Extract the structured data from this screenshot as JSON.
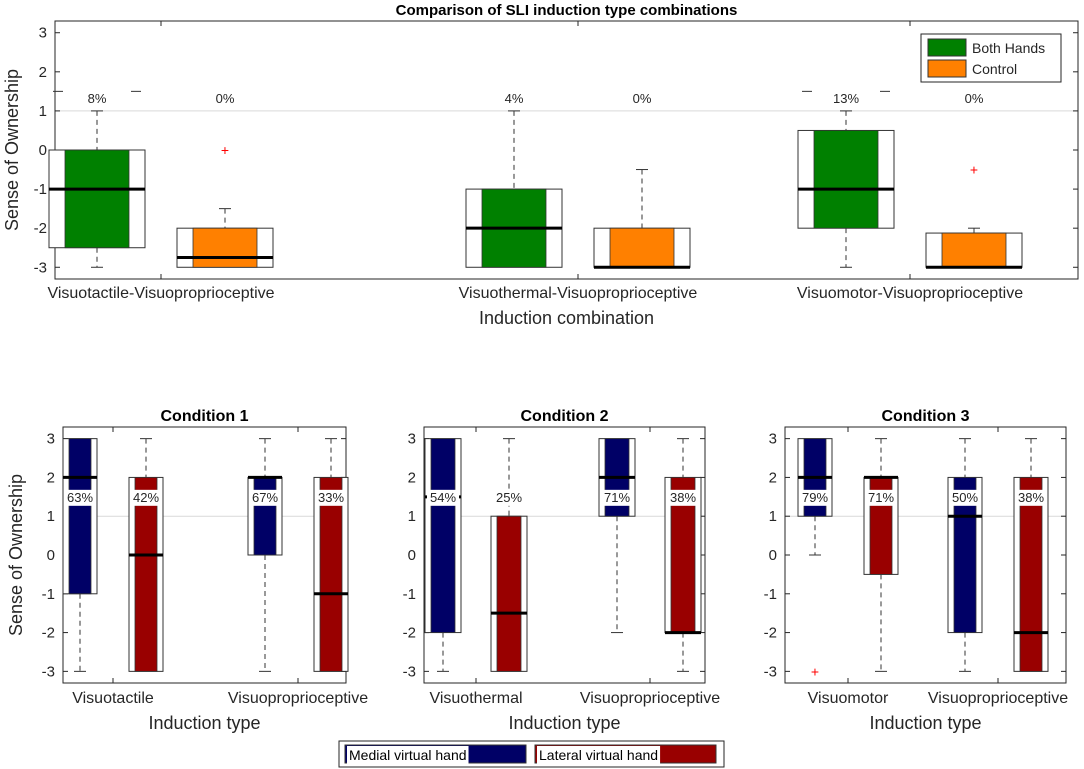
{
  "colors": {
    "both_hands": "#008000",
    "control": "#ff8000",
    "medial": "#000066",
    "lateral": "#990000",
    "outlier": "#ff0000",
    "gridline": "#d9d9d9"
  },
  "chart_data": [
    {
      "type": "boxplot",
      "title": "Comparison of SLI induction type combinations",
      "xlabel": "Induction combination",
      "ylabel": "Sense of Ownership",
      "ylim": [
        -3.3,
        3.3
      ],
      "yticks": [
        3,
        2,
        1,
        0,
        -1,
        -2,
        -3
      ],
      "reference_line": 1,
      "legend": {
        "position": "top-right",
        "entries": [
          "Both Hands",
          "Control"
        ]
      },
      "categories": [
        "Visuotactile-Visuoproprioceptive",
        "Visuothermal-Visuoproprioceptive",
        "Visuomotor-Visuoproprioceptive"
      ],
      "series": [
        {
          "name": "Both Hands",
          "color_key": "both_hands",
          "boxes": [
            {
              "min": -3,
              "q1": -2.5,
              "median": -1,
              "q3": 0,
              "max": 1,
              "pct_label": "8%",
              "extra_whisker": 1.5,
              "outliers": []
            },
            {
              "min": -3,
              "q1": -3,
              "median": -2,
              "q3": -1,
              "max": 1,
              "pct_label": "4%",
              "outliers": []
            },
            {
              "min": -3,
              "q1": -2,
              "median": -1,
              "q3": 0.5,
              "max": 1,
              "pct_label": "13%",
              "extra_whisker": 1.5,
              "outliers": []
            }
          ]
        },
        {
          "name": "Control",
          "color_key": "control",
          "boxes": [
            {
              "min": -3,
              "q1": -3,
              "median": -2.75,
              "q3": -2,
              "max": -1.5,
              "pct_label": "0%",
              "outliers": [
                0
              ]
            },
            {
              "min": -3,
              "q1": -3,
              "median": -3,
              "q3": -2,
              "max": -0.5,
              "pct_label": "0%",
              "outliers": []
            },
            {
              "min": -3,
              "q1": -3,
              "median": -3,
              "q3": -2.125,
              "max": -2,
              "pct_label": "0%",
              "outliers": [
                -0.5
              ]
            }
          ]
        }
      ]
    },
    {
      "type": "boxplot",
      "title": "Condition 1",
      "xlabel": "Induction type",
      "ylabel": "Sense of Ownership",
      "ylim": [
        -3.3,
        3.3
      ],
      "yticks": [
        3,
        2,
        1,
        0,
        -1,
        -2,
        -3
      ],
      "reference_line": 1,
      "categories": [
        "Visuotactile",
        "Visuoproprioceptive"
      ],
      "series": [
        {
          "name": "Medial virtual hand",
          "color_key": "medial",
          "boxes": [
            {
              "min": -3,
              "q1": -1,
              "median": 2,
              "q3": 3,
              "max": 3,
              "pct_label": "63%",
              "outliers": []
            },
            {
              "min": -3,
              "q1": 0,
              "median": 2,
              "q3": 2,
              "max": 3,
              "pct_label": "67%",
              "outliers": []
            }
          ]
        },
        {
          "name": "Lateral virtual hand",
          "color_key": "lateral",
          "boxes": [
            {
              "min": -3,
              "q1": -3,
              "median": 0,
              "q3": 2,
              "max": 3,
              "pct_label": "42%",
              "outliers": []
            },
            {
              "min": -3,
              "q1": -3,
              "median": -1,
              "q3": 2,
              "max": 3,
              "pct_label": "33%",
              "outliers": []
            }
          ]
        }
      ]
    },
    {
      "type": "boxplot",
      "title": "Condition 2",
      "xlabel": "Induction type",
      "ylim": [
        -3.3,
        3.3
      ],
      "yticks": [
        3,
        2,
        1,
        0,
        -1,
        -2,
        -3
      ],
      "reference_line": 1,
      "categories": [
        "Visuothermal",
        "Visuoproprioceptive"
      ],
      "series": [
        {
          "name": "Medial virtual hand",
          "color_key": "medial",
          "boxes": [
            {
              "min": -3,
              "q1": -2,
              "median": 1.5,
              "q3": 3,
              "max": 3,
              "pct_label": "54%",
              "outliers": []
            },
            {
              "min": -2,
              "q1": 1,
              "median": 2,
              "q3": 3,
              "max": 3,
              "pct_label": "71%",
              "outliers": []
            }
          ]
        },
        {
          "name": "Lateral virtual hand",
          "color_key": "lateral",
          "boxes": [
            {
              "min": -3,
              "q1": -3,
              "median": -1.5,
              "q3": 1,
              "max": 3,
              "pct_label": "25%",
              "outliers": []
            },
            {
              "min": -3,
              "q1": -2,
              "median": -2,
              "q3": 2,
              "max": 3,
              "pct_label": "38%",
              "outliers": []
            }
          ]
        }
      ]
    },
    {
      "type": "boxplot",
      "title": "Condition 3",
      "xlabel": "Induction type",
      "ylim": [
        -3.3,
        3.3
      ],
      "yticks": [
        3,
        2,
        1,
        0,
        -1,
        -2,
        -3
      ],
      "reference_line": 1,
      "categories": [
        "Visuomotor",
        "Visuoproprioceptive"
      ],
      "series": [
        {
          "name": "Medial virtual hand",
          "color_key": "medial",
          "boxes": [
            {
              "min": 0,
              "q1": 1,
              "median": 2,
              "q3": 3,
              "max": 3,
              "pct_label": "79%",
              "outliers": [
                -3
              ]
            },
            {
              "min": -3,
              "q1": -2,
              "median": 1,
              "q3": 2,
              "max": 3,
              "pct_label": "50%",
              "outliers": []
            }
          ]
        },
        {
          "name": "Lateral virtual hand",
          "color_key": "lateral",
          "boxes": [
            {
              "min": -3,
              "q1": -0.5,
              "median": 2,
              "q3": 2,
              "max": 3,
              "pct_label": "71%",
              "outliers": []
            },
            {
              "min": -3,
              "q1": -3,
              "median": -2,
              "q3": 2,
              "max": 3,
              "pct_label": "38%",
              "outliers": []
            }
          ]
        }
      ]
    }
  ],
  "bottom_legend": {
    "entries": [
      "Medial virtual hand",
      "Lateral virtual hand"
    ]
  }
}
